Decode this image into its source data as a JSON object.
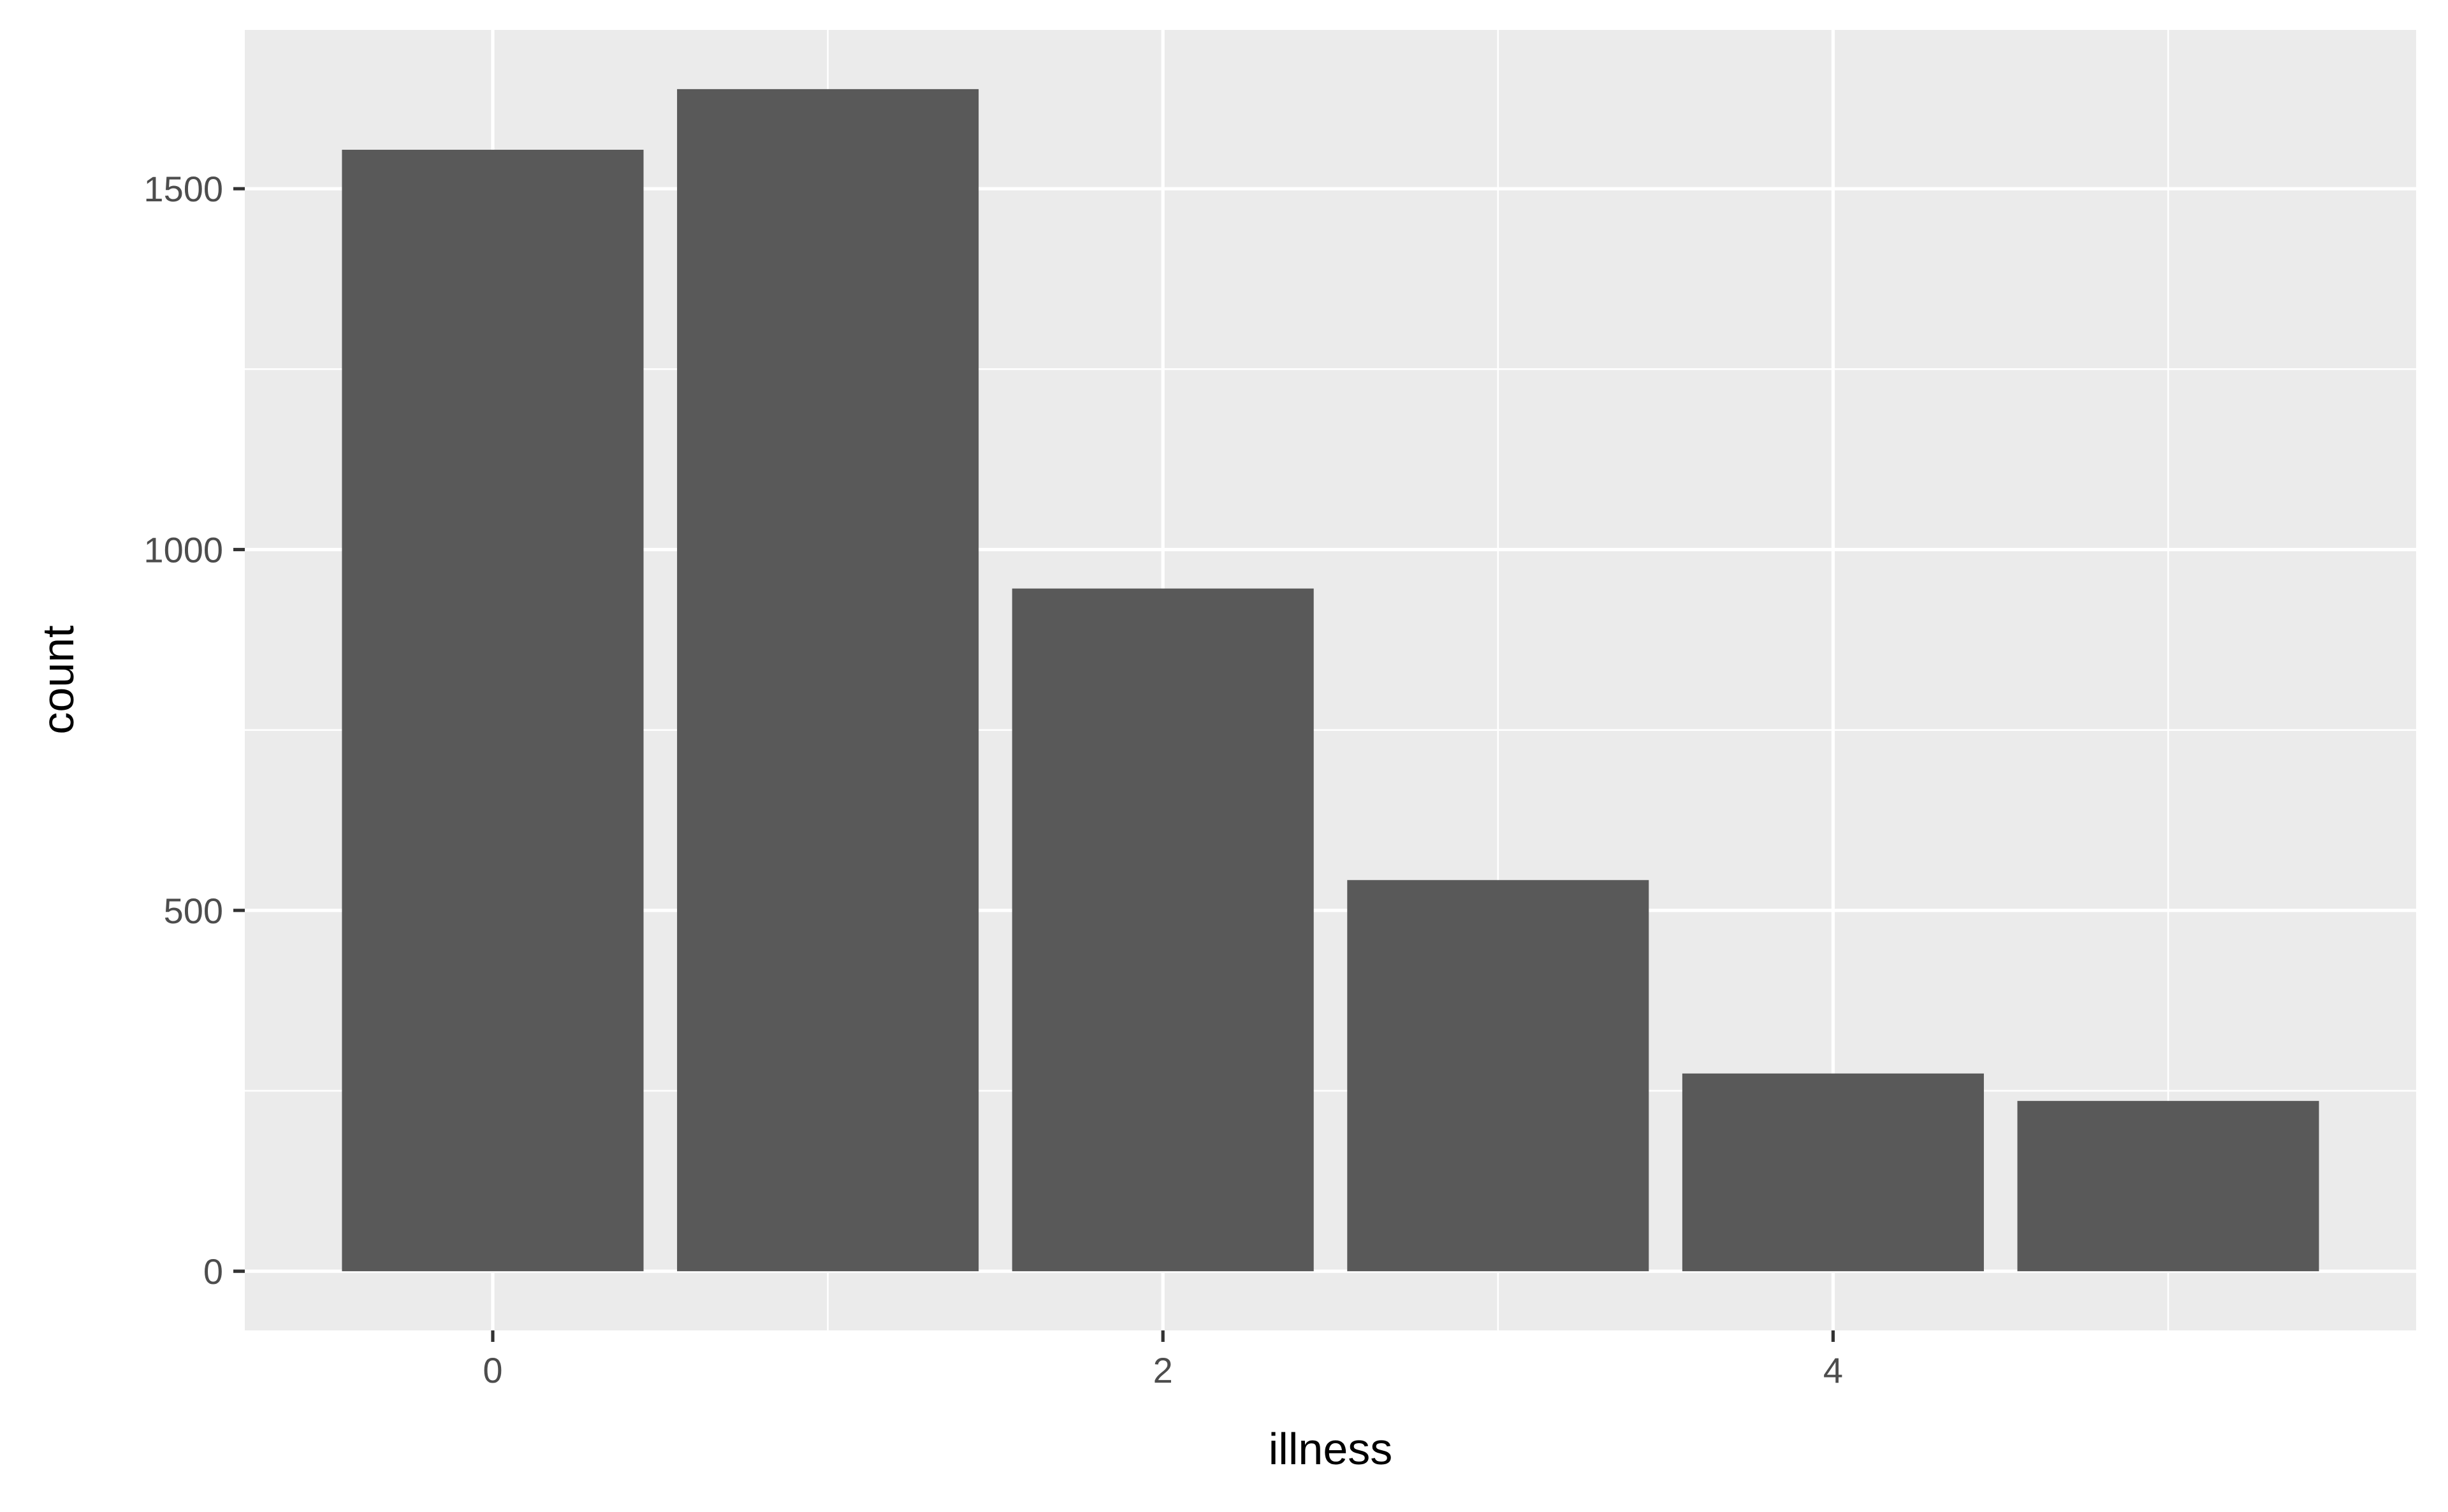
{
  "chart_data": {
    "type": "bar",
    "xlabel": "illness",
    "ylabel": "count",
    "x": [
      0,
      1,
      2,
      3,
      4,
      5
    ],
    "values": [
      1554,
      1638,
      946,
      542,
      274,
      236
    ],
    "xlim": [
      -0.74,
      5.74
    ],
    "ylim": [
      -82,
      1720
    ],
    "x_ticks": [
      0,
      2,
      4
    ],
    "x_tick_labels": [
      "0",
      "2",
      "4"
    ],
    "y_ticks": [
      0,
      500,
      1000,
      1500
    ],
    "y_tick_labels": [
      "0",
      "500",
      "1000",
      "1500"
    ],
    "bar_width": 0.9,
    "grid": true,
    "legend": "none",
    "colors": {
      "bar": "#595959",
      "panel_background": "#EBEBEB",
      "grid": "#FFFFFF",
      "page_background": "#FFFFFF",
      "tick_text": "#4D4D4D",
      "tick_mark": "#333333",
      "axis_title": "#000000"
    }
  }
}
